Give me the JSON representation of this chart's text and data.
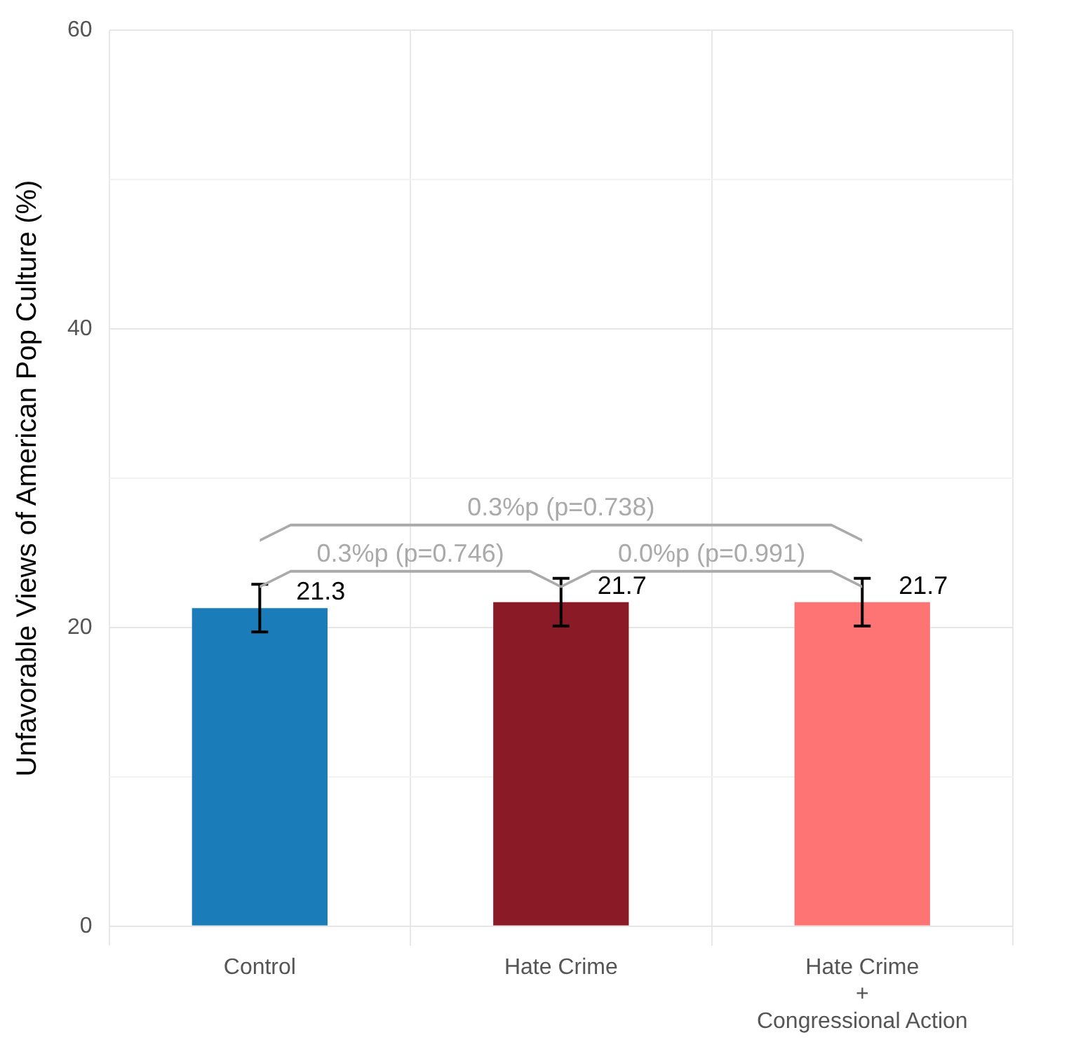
{
  "chart_data": {
    "type": "bar",
    "ylabel": "Unfavorable Views of American Pop Culture (%)",
    "categories": [
      "Control",
      "Hate Crime",
      "Hate Crime\n+\nCongressional Action"
    ],
    "values": [
      21.3,
      21.7,
      21.7
    ],
    "colors": [
      "#1a7cb8",
      "#8b1a27",
      "#fe7474"
    ],
    "errors": [
      1.6,
      1.6,
      1.6
    ],
    "ylim": [
      0,
      60
    ],
    "yticks": [
      0,
      {
        "value": 10,
        "label": null
      },
      20,
      {
        "value": 30,
        "label": null
      },
      40,
      {
        "value": 50,
        "label": null
      },
      60
    ],
    "grid": true,
    "data_labels": true,
    "annotations": [
      "0.3%p (p=0.738)",
      "0.3%p (p=0.746)",
      "0.0%p (p=0.991)"
    ]
  }
}
